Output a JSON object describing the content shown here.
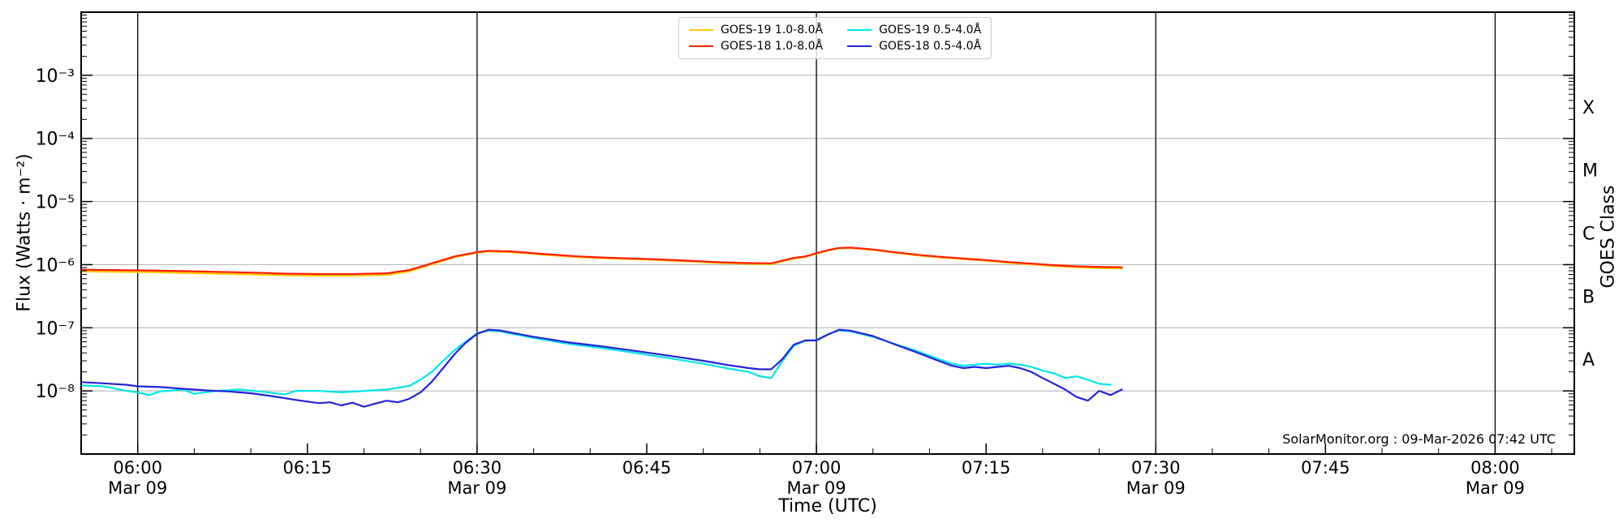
{
  "chart_data": {
    "type": "line",
    "title": "",
    "xlabel": "Time (UTC)",
    "ylabel": "Flux (Watts · m⁻²)",
    "ylabel_right": "GOES Class",
    "annotation": "SolarMonitor.org : 09-Mar-2026 07:42 UTC",
    "x_range": [
      "05:55",
      "08:07"
    ],
    "y_range": [
      1e-09,
      0.01
    ],
    "grid_on": true,
    "grid_color": "#b8b8b8",
    "vline_color": "#000000",
    "x_major_ticks": [
      {
        "time": "06:00",
        "date": "Mar 09"
      },
      {
        "time": "06:15",
        "date": ""
      },
      {
        "time": "06:30",
        "date": "Mar 09"
      },
      {
        "time": "06:45",
        "date": ""
      },
      {
        "time": "07:00",
        "date": "Mar 09"
      },
      {
        "time": "07:15",
        "date": ""
      },
      {
        "time": "07:30",
        "date": "Mar 09"
      },
      {
        "time": "07:45",
        "date": ""
      },
      {
        "time": "08:00",
        "date": "Mar 09"
      }
    ],
    "x_gridline_times": [
      "06:00",
      "06:30",
      "07:00",
      "07:30",
      "08:00"
    ],
    "y_decade_exponents": [
      -3,
      -4,
      -5,
      -6,
      -7,
      -8
    ],
    "goes_classes": [
      {
        "label": "X",
        "exponent": -3.5
      },
      {
        "label": "M",
        "exponent": -4.5
      },
      {
        "label": "C",
        "exponent": -5.5
      },
      {
        "label": "B",
        "exponent": -6.5
      },
      {
        "label": "A",
        "exponent": -7.5
      }
    ],
    "legend_position": "upper center",
    "legend": [
      {
        "label": "GOES-19 1.0-8.0Å",
        "color": "#ffc800"
      },
      {
        "label": "GOES-19 0.5-4.0Å",
        "color": "#00e6e6"
      },
      {
        "label": "GOES-18 1.0-8.0Å",
        "color": "#ff1e00"
      },
      {
        "label": "GOES-18 0.5-4.0Å",
        "color": "#2323dc"
      }
    ],
    "series": [
      {
        "name": "GOES-19 1.0-8.0Å",
        "color": "#ffc800",
        "points": [
          [
            "05:55",
            7.8e-07
          ],
          [
            "05:58",
            7.7e-07
          ],
          [
            "06:01",
            7.6e-07
          ],
          [
            "06:04",
            7.4e-07
          ],
          [
            "06:07",
            7.2e-07
          ],
          [
            "06:10",
            7e-07
          ],
          [
            "06:13",
            6.8e-07
          ],
          [
            "06:16",
            6.7e-07
          ],
          [
            "06:19",
            6.7e-07
          ],
          [
            "06:22",
            6.9e-07
          ],
          [
            "06:24",
            7.8e-07
          ],
          [
            "06:26",
            1.01e-06
          ],
          [
            "06:28",
            1.31e-06
          ],
          [
            "06:30",
            1.54e-06
          ],
          [
            "06:31",
            1.62e-06
          ],
          [
            "06:33",
            1.58e-06
          ],
          [
            "06:36",
            1.43e-06
          ],
          [
            "06:39",
            1.31e-06
          ],
          [
            "06:42",
            1.25e-06
          ],
          [
            "06:45",
            1.2e-06
          ],
          [
            "06:48",
            1.14e-06
          ],
          [
            "06:51",
            1.07e-06
          ],
          [
            "06:54",
            1.03e-06
          ],
          [
            "06:56",
            1.02e-06
          ],
          [
            "06:58",
            1.25e-06
          ],
          [
            "06:59",
            1.32e-06
          ],
          [
            "07:00",
            1.49e-06
          ],
          [
            "07:01",
            1.67e-06
          ],
          [
            "07:02",
            1.81e-06
          ],
          [
            "07:03",
            1.83e-06
          ],
          [
            "07:05",
            1.71e-06
          ],
          [
            "07:07",
            1.54e-06
          ],
          [
            "07:09",
            1.4e-06
          ],
          [
            "07:11",
            1.3e-06
          ],
          [
            "07:13",
            1.22e-06
          ],
          [
            "07:15",
            1.15e-06
          ],
          [
            "07:17",
            1.07e-06
          ],
          [
            "07:19",
            1.01e-06
          ],
          [
            "07:21",
            9.5e-07
          ],
          [
            "07:23",
            9.1e-07
          ],
          [
            "07:25",
            8.8e-07
          ],
          [
            "07:27",
            8.7e-07
          ]
        ]
      },
      {
        "name": "GOES-18 1.0-8.0Å",
        "color": "#ff1e00",
        "points": [
          [
            "05:55",
            8.3e-07
          ],
          [
            "05:58",
            8.2e-07
          ],
          [
            "06:01",
            8.1e-07
          ],
          [
            "06:04",
            7.9e-07
          ],
          [
            "06:07",
            7.7e-07
          ],
          [
            "06:10",
            7.5e-07
          ],
          [
            "06:13",
            7.2e-07
          ],
          [
            "06:16",
            7.1e-07
          ],
          [
            "06:19",
            7.1e-07
          ],
          [
            "06:22",
            7.3e-07
          ],
          [
            "06:24",
            8.2e-07
          ],
          [
            "06:26",
            1.05e-06
          ],
          [
            "06:28",
            1.35e-06
          ],
          [
            "06:30",
            1.58e-06
          ],
          [
            "06:31",
            1.66e-06
          ],
          [
            "06:33",
            1.62e-06
          ],
          [
            "06:36",
            1.47e-06
          ],
          [
            "06:39",
            1.35e-06
          ],
          [
            "06:42",
            1.28e-06
          ],
          [
            "06:45",
            1.23e-06
          ],
          [
            "06:48",
            1.17e-06
          ],
          [
            "06:51",
            1.1e-06
          ],
          [
            "06:54",
            1.06e-06
          ],
          [
            "06:56",
            1.05e-06
          ],
          [
            "06:58",
            1.28e-06
          ],
          [
            "06:59",
            1.35e-06
          ],
          [
            "07:00",
            1.52e-06
          ],
          [
            "07:01",
            1.7e-06
          ],
          [
            "07:02",
            1.84e-06
          ],
          [
            "07:03",
            1.86e-06
          ],
          [
            "07:05",
            1.74e-06
          ],
          [
            "07:07",
            1.57e-06
          ],
          [
            "07:09",
            1.43e-06
          ],
          [
            "07:11",
            1.33e-06
          ],
          [
            "07:13",
            1.25e-06
          ],
          [
            "07:15",
            1.18e-06
          ],
          [
            "07:17",
            1.1e-06
          ],
          [
            "07:19",
            1.04e-06
          ],
          [
            "07:21",
            9.8e-07
          ],
          [
            "07:23",
            9.4e-07
          ],
          [
            "07:25",
            9.2e-07
          ],
          [
            "07:27",
            9.1e-07
          ]
        ]
      },
      {
        "name": "GOES-19 0.5-4.0Å",
        "color": "#00e6e6",
        "points": [
          [
            "05:55",
            1.22e-08
          ],
          [
            "05:57",
            1.18e-08
          ],
          [
            "05:59",
            1e-08
          ],
          [
            "06:00",
            9.5e-09
          ],
          [
            "06:01",
            8.6e-09
          ],
          [
            "06:02",
            9.8e-09
          ],
          [
            "06:04",
            1.05e-08
          ],
          [
            "06:05",
            9e-09
          ],
          [
            "06:07",
            1e-08
          ],
          [
            "06:09",
            1.05e-08
          ],
          [
            "06:11",
            9.7e-09
          ],
          [
            "06:13",
            8.8e-09
          ],
          [
            "06:14",
            1e-08
          ],
          [
            "06:16",
            1e-08
          ],
          [
            "06:18",
            9.5e-09
          ],
          [
            "06:20",
            1e-08
          ],
          [
            "06:22",
            1.05e-08
          ],
          [
            "06:24",
            1.2e-08
          ],
          [
            "06:25",
            1.5e-08
          ],
          [
            "06:26",
            2e-08
          ],
          [
            "06:27",
            3e-08
          ],
          [
            "06:28",
            4.4e-08
          ],
          [
            "06:29",
            6e-08
          ],
          [
            "06:30",
            8.2e-08
          ],
          [
            "06:31",
            9e-08
          ],
          [
            "06:32",
            8.8e-08
          ],
          [
            "06:33",
            8.1e-08
          ],
          [
            "06:35",
            6.9e-08
          ],
          [
            "06:38",
            5.6e-08
          ],
          [
            "06:41",
            4.8e-08
          ],
          [
            "06:44",
            4e-08
          ],
          [
            "06:47",
            3.3e-08
          ],
          [
            "06:50",
            2.7e-08
          ],
          [
            "06:52",
            2.3e-08
          ],
          [
            "06:54",
            2e-08
          ],
          [
            "06:55",
            1.7e-08
          ],
          [
            "06:56",
            1.6e-08
          ],
          [
            "06:57",
            3e-08
          ],
          [
            "06:58",
            5.2e-08
          ],
          [
            "06:59",
            6.2e-08
          ],
          [
            "07:00",
            6.4e-08
          ],
          [
            "07:01",
            7.9e-08
          ],
          [
            "07:02",
            9.1e-08
          ],
          [
            "07:03",
            8.8e-08
          ],
          [
            "07:05",
            7.2e-08
          ],
          [
            "07:07",
            5.5e-08
          ],
          [
            "07:09",
            4.2e-08
          ],
          [
            "07:10",
            3.6e-08
          ],
          [
            "07:11",
            3.1e-08
          ],
          [
            "07:12",
            2.7e-08
          ],
          [
            "07:13",
            2.5e-08
          ],
          [
            "07:14",
            2.6e-08
          ],
          [
            "07:15",
            2.7e-08
          ],
          [
            "07:16",
            2.6e-08
          ],
          [
            "07:17",
            2.7e-08
          ],
          [
            "07:18",
            2.6e-08
          ],
          [
            "07:19",
            2.4e-08
          ],
          [
            "07:20",
            2.1e-08
          ],
          [
            "07:21",
            1.9e-08
          ],
          [
            "07:22",
            1.6e-08
          ],
          [
            "07:23",
            1.7e-08
          ],
          [
            "07:24",
            1.5e-08
          ],
          [
            "07:25",
            1.3e-08
          ],
          [
            "07:26",
            1.25e-08
          ]
        ]
      },
      {
        "name": "GOES-18 0.5-4.0Å",
        "color": "#2323dc",
        "points": [
          [
            "05:55",
            1.38e-08
          ],
          [
            "05:57",
            1.32e-08
          ],
          [
            "05:59",
            1.25e-08
          ],
          [
            "06:00",
            1.18e-08
          ],
          [
            "06:02",
            1.15e-08
          ],
          [
            "06:04",
            1.08e-08
          ],
          [
            "06:06",
            1.02e-08
          ],
          [
            "06:08",
            9.8e-09
          ],
          [
            "06:10",
            9.2e-09
          ],
          [
            "06:12",
            8.2e-09
          ],
          [
            "06:14",
            7.2e-09
          ],
          [
            "06:16",
            6.4e-09
          ],
          [
            "06:17",
            6.6e-09
          ],
          [
            "06:18",
            5.9e-09
          ],
          [
            "06:19",
            6.5e-09
          ],
          [
            "06:20",
            5.6e-09
          ],
          [
            "06:21",
            6.3e-09
          ],
          [
            "06:22",
            7e-09
          ],
          [
            "06:23",
            6.6e-09
          ],
          [
            "06:24",
            7.5e-09
          ],
          [
            "06:25",
            9.5e-09
          ],
          [
            "06:26",
            1.4e-08
          ],
          [
            "06:27",
            2.3e-08
          ],
          [
            "06:28",
            3.8e-08
          ],
          [
            "06:29",
            5.8e-08
          ],
          [
            "06:30",
            8e-08
          ],
          [
            "06:31",
            9.3e-08
          ],
          [
            "06:32",
            9.1e-08
          ],
          [
            "06:33",
            8.4e-08
          ],
          [
            "06:35",
            7.2e-08
          ],
          [
            "06:38",
            5.9e-08
          ],
          [
            "06:41",
            5.1e-08
          ],
          [
            "06:44",
            4.3e-08
          ],
          [
            "06:47",
            3.6e-08
          ],
          [
            "06:50",
            3e-08
          ],
          [
            "06:52",
            2.6e-08
          ],
          [
            "06:54",
            2.3e-08
          ],
          [
            "06:55",
            2.2e-08
          ],
          [
            "06:56",
            2.2e-08
          ],
          [
            "06:57",
            3.2e-08
          ],
          [
            "06:58",
            5.4e-08
          ],
          [
            "06:59",
            6.3e-08
          ],
          [
            "07:00",
            6.3e-08
          ],
          [
            "07:01",
            7.8e-08
          ],
          [
            "07:02",
            9.3e-08
          ],
          [
            "07:03",
            9e-08
          ],
          [
            "07:05",
            7.4e-08
          ],
          [
            "07:07",
            5.4e-08
          ],
          [
            "07:09",
            4e-08
          ],
          [
            "07:10",
            3.4e-08
          ],
          [
            "07:11",
            2.9e-08
          ],
          [
            "07:12",
            2.5e-08
          ],
          [
            "07:13",
            2.3e-08
          ],
          [
            "07:14",
            2.4e-08
          ],
          [
            "07:15",
            2.3e-08
          ],
          [
            "07:16",
            2.4e-08
          ],
          [
            "07:17",
            2.5e-08
          ],
          [
            "07:18",
            2.3e-08
          ],
          [
            "07:19",
            2e-08
          ],
          [
            "07:20",
            1.6e-08
          ],
          [
            "07:21",
            1.3e-08
          ],
          [
            "07:22",
            1.05e-08
          ],
          [
            "07:23",
            8e-09
          ],
          [
            "07:24",
            7e-09
          ],
          [
            "07:25",
            1e-08
          ],
          [
            "07:26",
            8.6e-09
          ],
          [
            "07:27",
            1.05e-08
          ]
        ]
      }
    ]
  }
}
